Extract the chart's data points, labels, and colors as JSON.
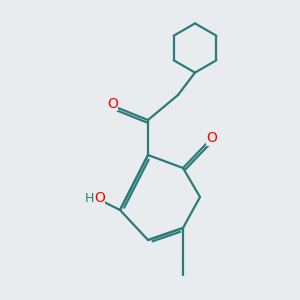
{
  "background_color": "#e8ecee",
  "bond_color": "#2d7a7a",
  "oxygen_color": "#ff0000",
  "line_width": 1.6,
  "fig_size": [
    3.0,
    3.0
  ],
  "dpi": 100,
  "xlim": [
    0,
    10
  ],
  "ylim": [
    0,
    10
  ]
}
